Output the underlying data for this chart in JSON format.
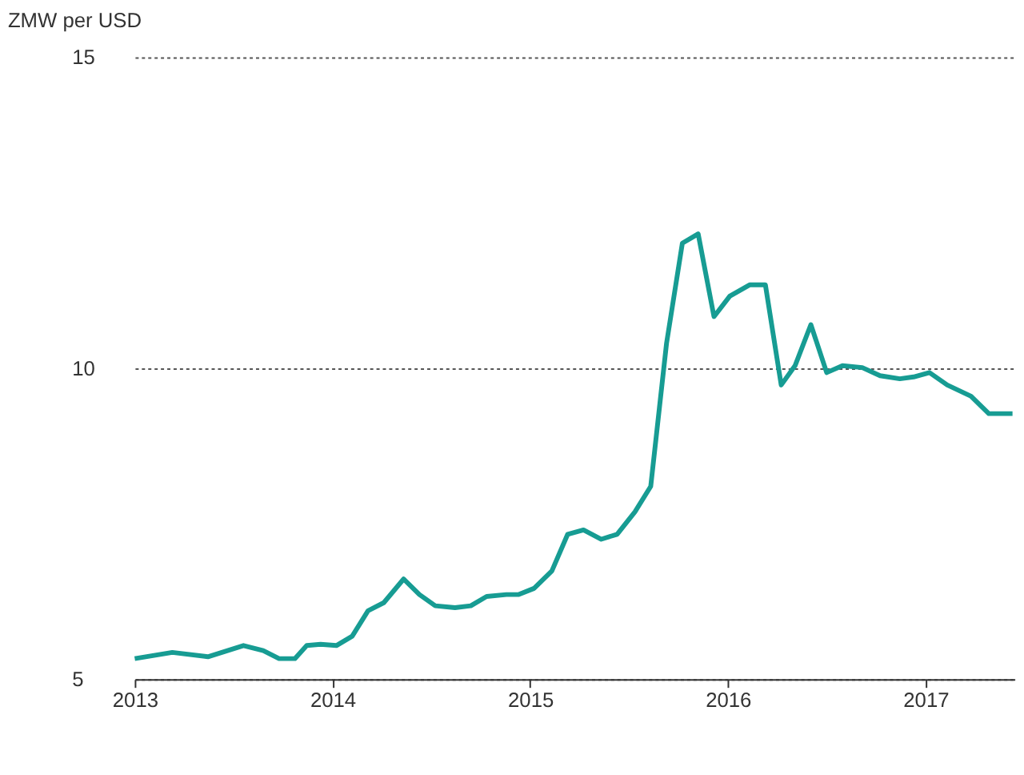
{
  "chart_data": {
    "type": "line",
    "ylabel": "ZMW per USD",
    "x": [
      2013.0,
      2013.19,
      2013.37,
      2013.55,
      2013.65,
      2013.73,
      2013.81,
      2013.87,
      2013.94,
      2014.02,
      2014.1,
      2014.18,
      2014.26,
      2014.36,
      2014.44,
      2014.52,
      2014.62,
      2014.7,
      2014.78,
      2014.88,
      2014.94,
      2015.02,
      2015.11,
      2015.19,
      2015.27,
      2015.36,
      2015.44,
      2015.53,
      2015.61,
      2015.69,
      2015.77,
      2015.85,
      2015.93,
      2016.01,
      2016.11,
      2016.19,
      2016.27,
      2016.34,
      2016.42,
      2016.5,
      2016.58,
      2016.68,
      2016.77,
      2016.87,
      2016.94,
      2017.02,
      2017.11,
      2017.23,
      2017.32,
      2017.44
    ],
    "series": [
      {
        "color": "#179c93",
        "values": [
          5.33,
          5.43,
          5.36,
          5.54,
          5.46,
          5.33,
          5.33,
          5.54,
          5.56,
          5.54,
          5.69,
          6.1,
          6.23,
          6.61,
          6.36,
          6.18,
          6.15,
          6.18,
          6.33,
          6.36,
          6.36,
          6.46,
          6.74,
          7.33,
          7.4,
          7.25,
          7.33,
          7.69,
          8.1,
          10.4,
          12.01,
          12.16,
          10.83,
          11.16,
          11.34,
          11.34,
          9.73,
          10.04,
          10.7,
          9.93,
          10.04,
          10.01,
          9.88,
          9.83,
          9.86,
          9.93,
          9.73,
          9.55,
          9.27,
          9.27
        ]
      }
    ],
    "xlim": [
      2013,
      2017.45
    ],
    "xticks": [
      2013,
      2014,
      2015,
      2016,
      2017
    ],
    "ylim": [
      5,
      15
    ],
    "yticks": [
      5,
      10,
      15
    ],
    "grid": "y",
    "line_style": "solid",
    "marker": "none",
    "legend": false
  }
}
